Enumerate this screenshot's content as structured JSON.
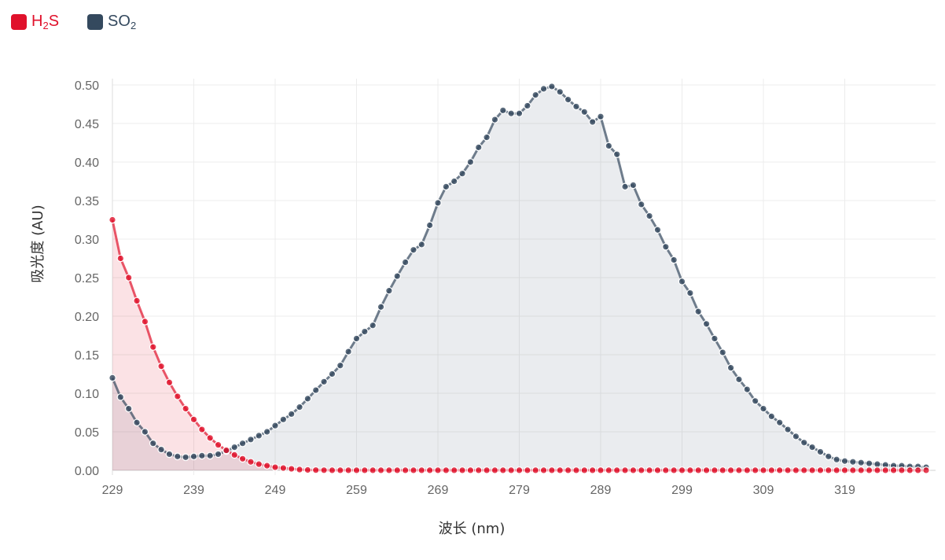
{
  "legend": [
    {
      "name": "H2S",
      "base": "H",
      "sub": "2",
      "tail": "S",
      "color": "#e0112b"
    },
    {
      "name": "SO2",
      "base": "SO",
      "sub": "2",
      "tail": "",
      "color": "#34495e"
    }
  ],
  "chart_data": {
    "type": "line",
    "xlabel": "波长 (nm)",
    "ylabel": "吸光度 (AU)",
    "ylim": [
      0,
      0.5
    ],
    "yticks": [
      "0.00",
      "0.05",
      "0.10",
      "0.15",
      "0.20",
      "0.25",
      "0.30",
      "0.35",
      "0.40",
      "0.45",
      "0.50"
    ],
    "xticks": [
      "229",
      "239",
      "249",
      "259",
      "269",
      "279",
      "289",
      "299",
      "309",
      "319"
    ],
    "x_start": 229,
    "x_end": 330,
    "grid": true,
    "legend_position": "top-left",
    "series": [
      {
        "name": "H2S",
        "color": "#e0112b",
        "values": [
          0.325,
          0.275,
          0.25,
          0.22,
          0.193,
          0.16,
          0.135,
          0.114,
          0.096,
          0.08,
          0.066,
          0.053,
          0.042,
          0.033,
          0.026,
          0.02,
          0.015,
          0.011,
          0.008,
          0.006,
          0.004,
          0.003,
          0.002,
          0.001,
          0.0005,
          0.0003,
          0.0002,
          0.0001,
          0.0001,
          0.0001,
          0.0001,
          0.0001,
          0.0001,
          0.0001,
          0.0001,
          0.0001,
          0.0001,
          0.0001,
          0.0001,
          0.0001,
          0.0001,
          0.0001,
          0.0001,
          0.0001,
          0.0001,
          0.0001,
          0.0001,
          0.0001,
          0.0001,
          0.0001,
          0.0001,
          0.0001,
          0.0001,
          0.0001,
          0.0001,
          0.0001,
          0.0001,
          0.0001,
          0.0001,
          0.0001,
          0.0001,
          0.0001,
          0.0001,
          0.0001,
          0.0001,
          0.0001,
          0.0001,
          0.0001,
          0.0001,
          0.0001,
          0.0001,
          0.0001,
          0.0001,
          0.0001,
          0.0001,
          0.0001,
          0.0001,
          0.0001,
          0.0001,
          0.0001,
          0.0001,
          0.0001,
          0.0001,
          0.0001,
          0.0001,
          0.0001,
          0.0001,
          0.0001,
          0.0001,
          0.0001,
          0.0001,
          0.0001,
          0.0001,
          0.0001,
          0.0001,
          0.0001,
          0.0001,
          0.0001,
          0.0001,
          0.0001,
          0.0001
        ]
      },
      {
        "name": "SO2",
        "color": "#34495e",
        "values": [
          0.12,
          0.095,
          0.08,
          0.062,
          0.05,
          0.035,
          0.027,
          0.021,
          0.018,
          0.017,
          0.018,
          0.019,
          0.019,
          0.021,
          0.025,
          0.03,
          0.035,
          0.04,
          0.045,
          0.05,
          0.058,
          0.066,
          0.073,
          0.082,
          0.093,
          0.104,
          0.115,
          0.125,
          0.136,
          0.154,
          0.171,
          0.18,
          0.188,
          0.212,
          0.233,
          0.252,
          0.27,
          0.286,
          0.293,
          0.318,
          0.347,
          0.368,
          0.375,
          0.385,
          0.4,
          0.419,
          0.432,
          0.455,
          0.467,
          0.463,
          0.463,
          0.473,
          0.487,
          0.495,
          0.498,
          0.491,
          0.481,
          0.472,
          0.465,
          0.452,
          0.459,
          0.421,
          0.41,
          0.368,
          0.37,
          0.345,
          0.33,
          0.312,
          0.29,
          0.273,
          0.245,
          0.23,
          0.206,
          0.19,
          0.171,
          0.153,
          0.133,
          0.118,
          0.105,
          0.09,
          0.08,
          0.07,
          0.062,
          0.053,
          0.044,
          0.036,
          0.03,
          0.024,
          0.018,
          0.014,
          0.012,
          0.011,
          0.01,
          0.009,
          0.008,
          0.007,
          0.006,
          0.006,
          0.005,
          0.005,
          0.004
        ]
      }
    ]
  }
}
